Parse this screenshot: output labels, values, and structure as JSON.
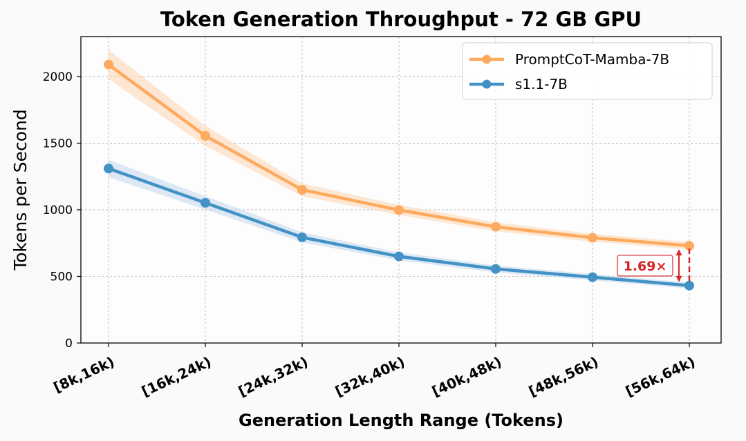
{
  "chart_data": {
    "type": "line",
    "title": "Token Generation Throughput - 72 GB GPU",
    "xlabel": "Generation Length Range (Tokens)",
    "ylabel": "Tokens per Second",
    "categories": [
      "[8k,16k)",
      "[16k,24k)",
      "[24k,32k)",
      "[32k,40k)",
      "[40k,48k)",
      "[48k,56k)",
      "[56k,64k)"
    ],
    "ylim": [
      0,
      2300
    ],
    "yticks": [
      0,
      500,
      1000,
      1500,
      2000
    ],
    "grid": true,
    "legend_position": "top-right",
    "series": [
      {
        "name": "PromptCoT-Mamba-7B",
        "color": "#fdaa5f",
        "band_color": "#fdd8b8",
        "values": [
          2090,
          1555,
          1150,
          998,
          872,
          790,
          730
        ],
        "band_half_width": [
          110,
          75,
          48,
          38,
          33,
          30,
          28
        ]
      },
      {
        "name": "s1.1-7B",
        "color": "#4292c6",
        "band_color": "#c6dbef",
        "values": [
          1310,
          1052,
          793,
          650,
          556,
          494,
          431
        ],
        "band_half_width": [
          65,
          50,
          38,
          30,
          26,
          24,
          22
        ]
      }
    ],
    "annotation": {
      "text": "1.69×",
      "color": "#d62728",
      "category_index": 6
    }
  }
}
